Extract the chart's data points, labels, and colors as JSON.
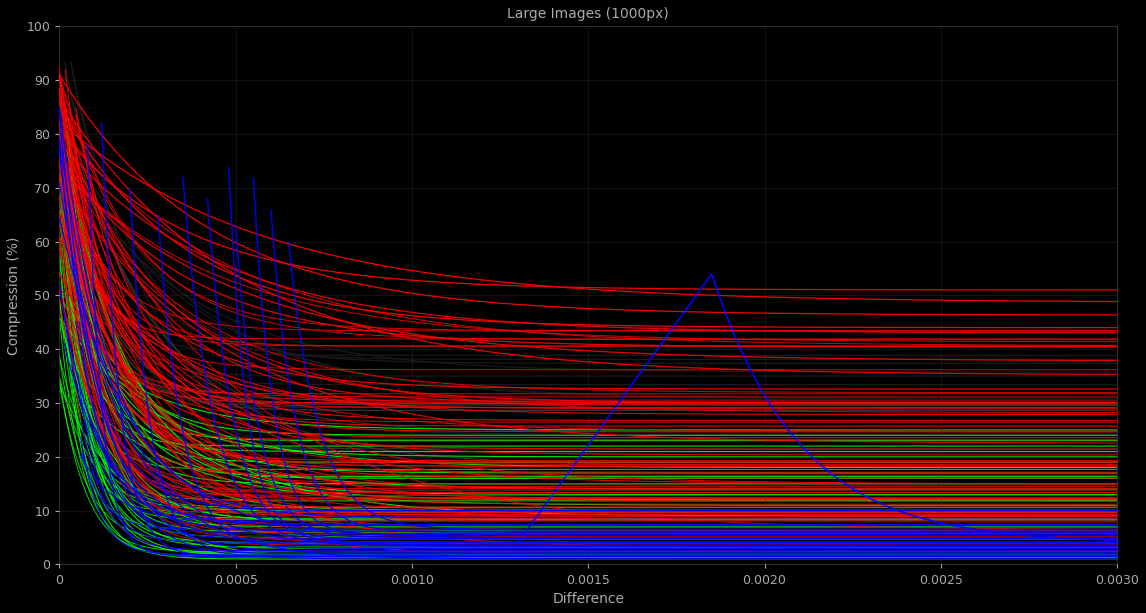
{
  "title": "Large Images (1000px)",
  "xlabel": "Difference",
  "ylabel": "Compression (%)",
  "xlim": [
    0,
    0.003
  ],
  "ylim": [
    0,
    100
  ],
  "xticks": [
    0,
    0.0005,
    0.001,
    0.0015,
    0.002,
    0.0025,
    0.003
  ],
  "yticks": [
    0,
    10,
    20,
    30,
    40,
    50,
    60,
    70,
    80,
    90,
    100
  ],
  "background_color": "#000000",
  "axis_color": "#000000",
  "text_color": "#aaaaaa",
  "grid_color": "#2a2a2a",
  "title_color": "#aaaaaa"
}
